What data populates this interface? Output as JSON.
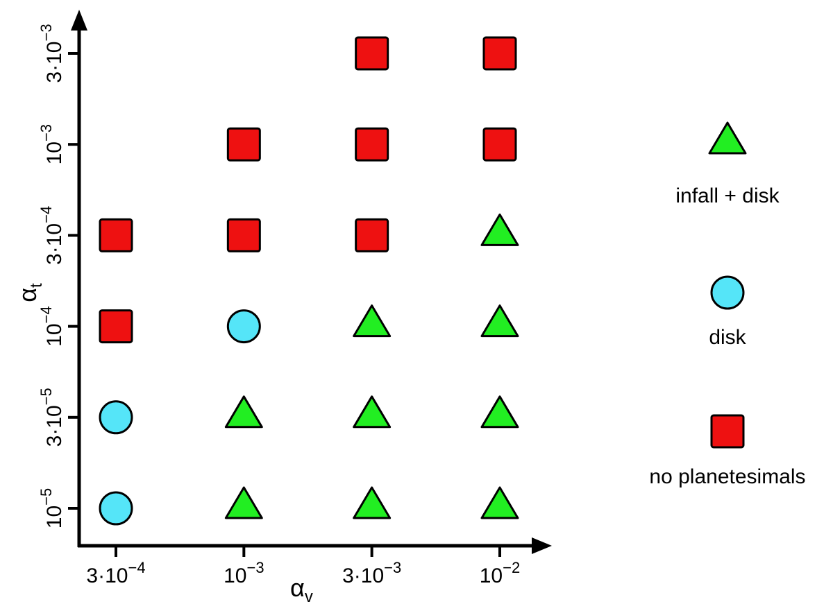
{
  "chart_data": {
    "type": "scatter",
    "x_axis": {
      "label": "α",
      "label_subscript": "v",
      "categories": [
        {
          "base": "3·10",
          "exp": "−4"
        },
        {
          "base": "10",
          "exp": "−3"
        },
        {
          "base": "3·10",
          "exp": "−3"
        },
        {
          "base": "10",
          "exp": "−2"
        }
      ]
    },
    "y_axis": {
      "label": "α",
      "label_subscript": "t",
      "categories": [
        {
          "base": "10",
          "exp": "−5"
        },
        {
          "base": "3·10",
          "exp": "−5"
        },
        {
          "base": "10",
          "exp": "−4"
        },
        {
          "base": "3·10",
          "exp": "−4"
        },
        {
          "base": "10",
          "exp": "−3"
        },
        {
          "base": "3·10",
          "exp": "−3"
        }
      ]
    },
    "legend": {
      "placement": "right",
      "entries": [
        {
          "key": "triangle",
          "label": "infall + disk"
        },
        {
          "key": "circle",
          "label": "disk"
        },
        {
          "key": "square",
          "label": "no planetesimals"
        }
      ]
    },
    "marker_styles": {
      "triangle": {
        "shape": "triangle",
        "fill": "#22ee22"
      },
      "circle": {
        "shape": "circle",
        "fill": "#55e5f8"
      },
      "square": {
        "shape": "square",
        "fill": "#ee1111"
      }
    },
    "points": [
      {
        "x": 0,
        "y": 0,
        "key": "circle"
      },
      {
        "x": 0,
        "y": 1,
        "key": "circle"
      },
      {
        "x": 0,
        "y": 2,
        "key": "square"
      },
      {
        "x": 0,
        "y": 3,
        "key": "square"
      },
      {
        "x": 1,
        "y": 0,
        "key": "triangle"
      },
      {
        "x": 1,
        "y": 1,
        "key": "triangle"
      },
      {
        "x": 1,
        "y": 2,
        "key": "circle"
      },
      {
        "x": 1,
        "y": 3,
        "key": "square"
      },
      {
        "x": 1,
        "y": 4,
        "key": "square"
      },
      {
        "x": 2,
        "y": 0,
        "key": "triangle"
      },
      {
        "x": 2,
        "y": 1,
        "key": "triangle"
      },
      {
        "x": 2,
        "y": 2,
        "key": "triangle"
      },
      {
        "x": 2,
        "y": 3,
        "key": "square"
      },
      {
        "x": 2,
        "y": 4,
        "key": "square"
      },
      {
        "x": 2,
        "y": 5,
        "key": "square"
      },
      {
        "x": 3,
        "y": 0,
        "key": "triangle"
      },
      {
        "x": 3,
        "y": 1,
        "key": "triangle"
      },
      {
        "x": 3,
        "y": 2,
        "key": "triangle"
      },
      {
        "x": 3,
        "y": 3,
        "key": "triangle"
      },
      {
        "x": 3,
        "y": 4,
        "key": "square"
      },
      {
        "x": 3,
        "y": 5,
        "key": "square"
      }
    ]
  }
}
